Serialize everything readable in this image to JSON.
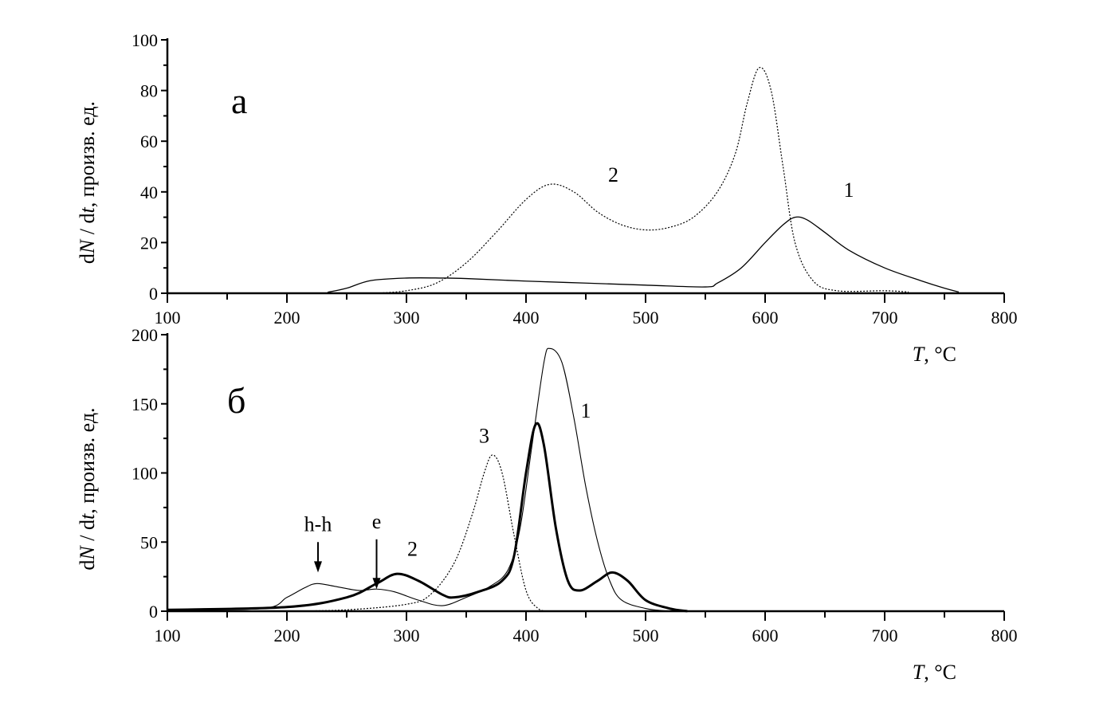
{
  "chart_data": [
    {
      "type": "line",
      "panel_label": "а",
      "xlabel": {
        "italic": "T",
        "rest": ", °C"
      },
      "ylabel": {
        "d1": "d",
        "N": "N",
        "mid": " / d",
        "t": "t",
        "rest": ", произв. ед."
      },
      "xlim": [
        100,
        800
      ],
      "ylim": [
        0,
        100
      ],
      "xticks": [
        100,
        200,
        300,
        400,
        500,
        600,
        700,
        800
      ],
      "yticks": [
        0,
        20,
        40,
        60,
        80,
        100
      ],
      "grid": false,
      "series": [
        {
          "label": "1",
          "style": "solid",
          "label_at": [
            670,
            38
          ],
          "x": [
            100,
            225,
            235,
            250,
            270,
            300,
            330,
            350,
            400,
            450,
            500,
            550,
            560,
            580,
            600,
            615,
            625,
            635,
            650,
            670,
            700,
            730,
            750,
            762
          ],
          "y": [
            0,
            0,
            0.5,
            2,
            5,
            6,
            6,
            5.8,
            4.8,
            4,
            3.2,
            2.5,
            4,
            10,
            20,
            27,
            30,
            29,
            24,
            17,
            10,
            5,
            2,
            0.5
          ]
        },
        {
          "label": "2",
          "style": "dotted",
          "label_at": [
            473,
            44
          ],
          "x": [
            275,
            300,
            325,
            350,
            375,
            400,
            420,
            440,
            460,
            480,
            500,
            520,
            540,
            560,
            575,
            585,
            595,
            605,
            615,
            625,
            640,
            660,
            700,
            720
          ],
          "y": [
            0,
            1,
            4,
            12,
            24,
            37,
            43,
            40,
            32,
            27,
            25,
            26,
            30,
            40,
            55,
            75,
            89,
            80,
            50,
            20,
            5,
            1,
            1,
            0.5
          ]
        }
      ]
    },
    {
      "type": "line",
      "panel_label": "б",
      "xlabel": {
        "italic": "T",
        "rest": ", °C"
      },
      "ylabel": {
        "d1": "d",
        "N": "N",
        "mid": " / d",
        "t": "t",
        "rest": ", произв. ед."
      },
      "xlim": [
        100,
        800
      ],
      "ylim": [
        0,
        200
      ],
      "xticks": [
        100,
        200,
        300,
        400,
        500,
        600,
        700,
        800
      ],
      "yticks": [
        0,
        50,
        100,
        150,
        200
      ],
      "grid": false,
      "series": [
        {
          "label": "1",
          "style": "thin-solid",
          "label_at": [
            450,
            140
          ],
          "x": [
            100,
            180,
            200,
            215,
            225,
            240,
            260,
            275,
            290,
            310,
            330,
            350,
            370,
            385,
            395,
            405,
            415,
            420,
            430,
            440,
            450,
            460,
            470,
            480,
            500,
            520
          ],
          "y": [
            1,
            2,
            10,
            17,
            20,
            18,
            15,
            16,
            14,
            8,
            4,
            10,
            18,
            30,
            60,
            120,
            180,
            190,
            180,
            140,
            90,
            50,
            22,
            8,
            2,
            0
          ]
        },
        {
          "label": "2",
          "style": "thick-solid",
          "label_at": [
            305,
            40
          ],
          "x": [
            100,
            200,
            250,
            275,
            292,
            310,
            330,
            340,
            360,
            380,
            390,
            400,
            408,
            415,
            425,
            435,
            445,
            460,
            472,
            485,
            500,
            520,
            535
          ],
          "y": [
            1,
            3,
            10,
            20,
            27,
            22,
            12,
            10,
            14,
            22,
            40,
            100,
            135,
            120,
            60,
            22,
            15,
            22,
            28,
            22,
            8,
            2,
            0
          ]
        },
        {
          "label": "3",
          "style": "dotted",
          "label_at": [
            365,
            122
          ],
          "x": [
            200,
            250,
            300,
            320,
            340,
            355,
            365,
            372,
            380,
            390,
            400,
            410,
            420
          ],
          "y": [
            0,
            1,
            5,
            12,
            35,
            70,
            100,
            113,
            100,
            55,
            15,
            2,
            0
          ]
        }
      ],
      "annotations": [
        {
          "text": "h-h",
          "arrow_x": 226,
          "arrow_from": 50,
          "arrow_to": 28
        },
        {
          "text": "e",
          "arrow_x": 275,
          "arrow_from": 52,
          "arrow_to": 16
        }
      ]
    }
  ]
}
